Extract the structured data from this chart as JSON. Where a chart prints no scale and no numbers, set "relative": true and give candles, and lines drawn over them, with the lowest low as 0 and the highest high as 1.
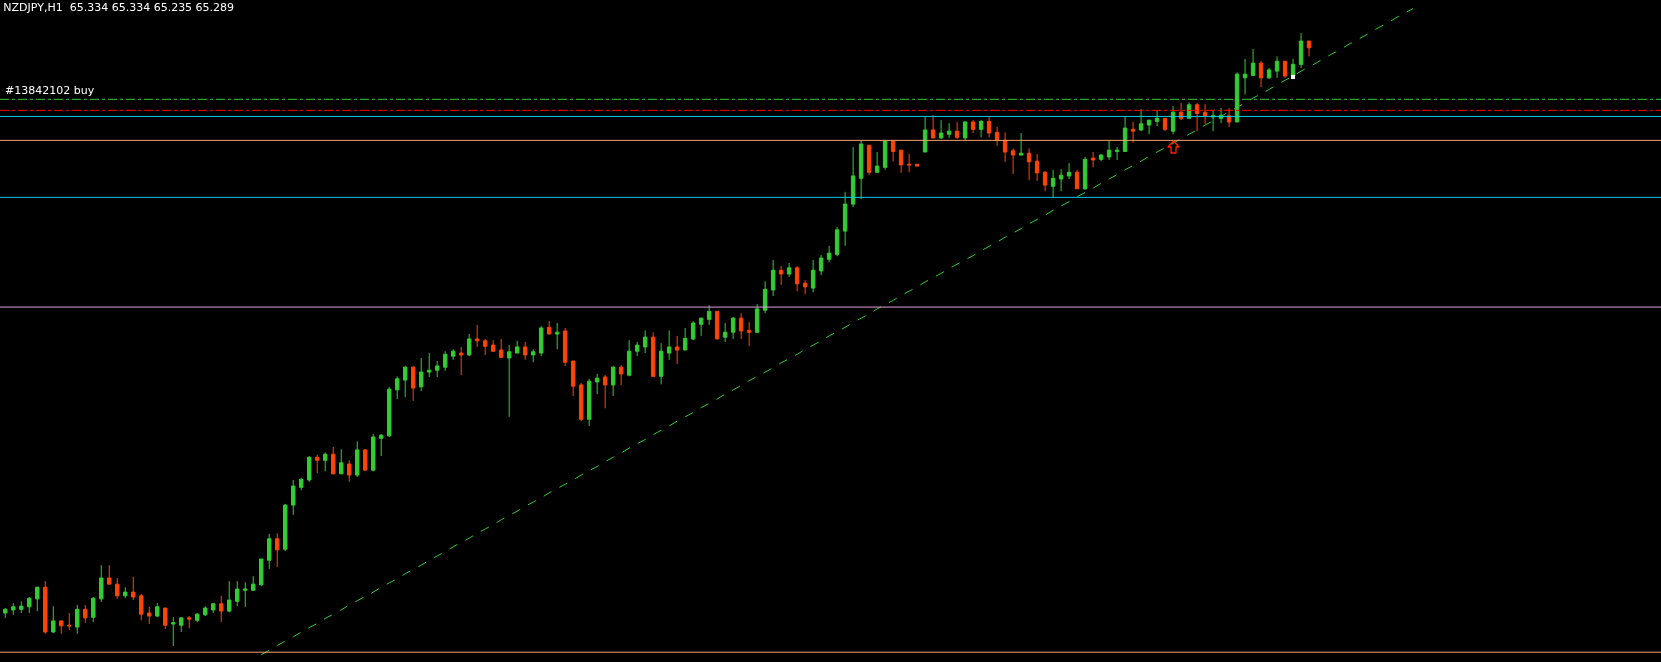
{
  "chart_data": {
    "type": "candlestick",
    "title": "NZDJPY,H1  65.334 65.334 65.235 65.289",
    "relative": true,
    "categories": [
      null,
      null,
      null,
      null,
      null,
      null,
      null,
      null,
      null,
      null,
      null,
      null,
      null,
      null,
      null,
      null,
      null,
      null,
      null,
      null,
      null,
      null,
      null,
      null,
      null,
      null,
      null,
      null,
      null,
      null,
      null,
      null,
      null,
      null,
      null,
      null,
      null,
      null,
      null,
      null,
      null,
      null,
      null,
      null,
      null,
      null,
      null,
      null,
      null,
      null,
      null,
      null,
      null,
      null,
      null,
      null,
      null,
      null,
      null,
      null,
      null,
      null,
      null,
      null,
      null,
      null,
      null,
      null,
      null,
      null,
      null,
      null,
      null,
      null,
      null,
      null,
      null,
      null,
      null,
      null,
      null,
      null,
      null,
      null,
      null,
      null,
      null,
      null,
      null,
      null,
      null,
      null,
      null,
      null,
      null,
      null,
      null,
      null,
      null,
      null,
      null,
      null,
      null,
      null,
      null,
      null,
      null,
      null,
      null,
      null,
      null,
      null,
      null,
      null,
      null,
      null,
      null,
      null,
      null,
      null,
      null,
      null,
      null,
      null,
      null,
      null,
      null,
      null,
      null,
      null,
      null,
      null,
      null,
      null,
      null,
      null,
      null,
      null,
      null,
      null,
      null,
      null,
      null,
      null,
      null,
      null,
      null,
      null,
      null,
      null,
      null,
      null,
      null,
      null,
      null,
      null,
      null,
      null,
      null,
      null,
      null,
      null,
      null,
      null,
      null,
      null,
      null,
      null,
      null,
      null,
      null,
      null,
      null,
      null,
      null,
      null,
      null
    ],
    "ohlc": [
      [
        0.054,
        0.062,
        0.046,
        0.06
      ],
      [
        0.059,
        0.07,
        0.051,
        0.064
      ],
      [
        0.06,
        0.073,
        0.054,
        0.065
      ],
      [
        0.064,
        0.08,
        0.054,
        0.078
      ],
      [
        0.077,
        0.096,
        0.057,
        0.096
      ],
      [
        0.096,
        0.106,
        0.02,
        0.023
      ],
      [
        0.023,
        0.065,
        0.021,
        0.041
      ],
      [
        0.041,
        0.041,
        0.02,
        0.033
      ],
      [
        0.034,
        0.054,
        0.026,
        0.033
      ],
      [
        0.031,
        0.067,
        0.02,
        0.06
      ],
      [
        0.06,
        0.067,
        0.038,
        0.046
      ],
      [
        0.047,
        0.08,
        0.039,
        0.078
      ],
      [
        0.077,
        0.132,
        0.072,
        0.111
      ],
      [
        0.111,
        0.132,
        0.101,
        0.101
      ],
      [
        0.101,
        0.111,
        0.077,
        0.082
      ],
      [
        0.082,
        0.096,
        0.078,
        0.088
      ],
      [
        0.088,
        0.113,
        0.075,
        0.08
      ],
      [
        0.082,
        0.085,
        0.042,
        0.052
      ],
      [
        0.054,
        0.064,
        0.036,
        0.049
      ],
      [
        0.049,
        0.07,
        0.047,
        0.064
      ],
      [
        0.062,
        0.062,
        0.028,
        0.034
      ],
      [
        0.036,
        0.047,
        0,
        0.038
      ],
      [
        0.034,
        0.047,
        0.023,
        0.046
      ],
      [
        0.046,
        0.049,
        0.029,
        0.044
      ],
      [
        0.042,
        0.054,
        0.039,
        0.052
      ],
      [
        0.051,
        0.065,
        0.049,
        0.062
      ],
      [
        0.059,
        0.07,
        0.054,
        0.069
      ],
      [
        0.069,
        0.082,
        0.039,
        0.057
      ],
      [
        0.057,
        0.106,
        0.055,
        0.075
      ],
      [
        0.073,
        0.106,
        0.065,
        0.093
      ],
      [
        0.091,
        0.104,
        0.064,
        0.093
      ],
      [
        0.091,
        0.114,
        0.091,
        0.101
      ],
      [
        0.1,
        0.142,
        0.098,
        0.142
      ],
      [
        0.14,
        0.183,
        0.126,
        0.175
      ],
      [
        0.175,
        0.184,
        0.129,
        0.157
      ],
      [
        0.158,
        0.232,
        0.155,
        0.23
      ],
      [
        0.23,
        0.271,
        0.214,
        0.261
      ],
      [
        0.259,
        0.274,
        0.254,
        0.272
      ],
      [
        0.271,
        0.31,
        0.268,
        0.308
      ],
      [
        0.308,
        0.312,
        0.282,
        0.303
      ],
      [
        0.303,
        0.316,
        0.285,
        0.313
      ],
      [
        0.313,
        0.325,
        0.281,
        0.281
      ],
      [
        0.281,
        0.321,
        0.281,
        0.299
      ],
      [
        0.297,
        0.303,
        0.268,
        0.279
      ],
      [
        0.279,
        0.334,
        0.276,
        0.32
      ],
      [
        0.32,
        0.321,
        0.287,
        0.287
      ],
      [
        0.287,
        0.346,
        0.285,
        0.341
      ],
      [
        0.339,
        0.346,
        0.31,
        0.344
      ],
      [
        0.343,
        0.423,
        0.341,
        0.419
      ],
      [
        0.418,
        0.44,
        0.403,
        0.436
      ],
      [
        0.434,
        0.457,
        0.406,
        0.455
      ],
      [
        0.455,
        0.457,
        0.4,
        0.421
      ],
      [
        0.423,
        0.47,
        0.416,
        0.447
      ],
      [
        0.447,
        0.478,
        0.439,
        0.45
      ],
      [
        0.45,
        0.465,
        0.439,
        0.457
      ],
      [
        0.455,
        0.481,
        0.449,
        0.476
      ],
      [
        0.473,
        0.484,
        0.467,
        0.481
      ],
      [
        0.478,
        0.488,
        0.442,
        0.475
      ],
      [
        0.475,
        0.509,
        0.473,
        0.501
      ],
      [
        0.501,
        0.524,
        0.488,
        0.498
      ],
      [
        0.498,
        0.501,
        0.475,
        0.489
      ],
      [
        0.491,
        0.499,
        0.48,
        0.481
      ],
      [
        0.483,
        0.501,
        0.471,
        0.471
      ],
      [
        0.47,
        0.491,
        0.374,
        0.48
      ],
      [
        0.478,
        0.498,
        0.478,
        0.488
      ],
      [
        0.488,
        0.496,
        0.467,
        0.475
      ],
      [
        0.475,
        0.484,
        0.463,
        0.48
      ],
      [
        0.478,
        0.522,
        0.473,
        0.519
      ],
      [
        0.52,
        0.53,
        0.509,
        0.509
      ],
      [
        0.509,
        0.527,
        0.484,
        0.512
      ],
      [
        0.514,
        0.519,
        0.457,
        0.463
      ],
      [
        0.465,
        0.465,
        0.408,
        0.424
      ],
      [
        0.426,
        0.429,
        0.367,
        0.37
      ],
      [
        0.37,
        0.436,
        0.359,
        0.432
      ],
      [
        0.431,
        0.444,
        0.411,
        0.437
      ],
      [
        0.439,
        0.442,
        0.388,
        0.426
      ],
      [
        0.426,
        0.457,
        0.408,
        0.455
      ],
      [
        0.455,
        0.458,
        0.426,
        0.444
      ],
      [
        0.442,
        0.499,
        0.44,
        0.481
      ],
      [
        0.481,
        0.496,
        0.473,
        0.491
      ],
      [
        0.488,
        0.515,
        0.478,
        0.504
      ],
      [
        0.504,
        0.512,
        0.44,
        0.44
      ],
      [
        0.44,
        0.494,
        0.427,
        0.481
      ],
      [
        0.478,
        0.515,
        0.467,
        0.488
      ],
      [
        0.488,
        0.506,
        0.46,
        0.483
      ],
      [
        0.483,
        0.519,
        0.483,
        0.502
      ],
      [
        0.501,
        0.53,
        0.499,
        0.527
      ],
      [
        0.525,
        0.535,
        0.506,
        0.535
      ],
      [
        0.533,
        0.556,
        0.524,
        0.546
      ],
      [
        0.546,
        0.546,
        0.501,
        0.501
      ],
      [
        0.504,
        0.527,
        0.496,
        0.512
      ],
      [
        0.512,
        0.537,
        0.501,
        0.535
      ],
      [
        0.535,
        0.543,
        0.501,
        0.514
      ],
      [
        0.515,
        0.529,
        0.489,
        0.512
      ],
      [
        0.512,
        0.558,
        0.512,
        0.55
      ],
      [
        0.548,
        0.595,
        0.543,
        0.582
      ],
      [
        0.581,
        0.63,
        0.571,
        0.613
      ],
      [
        0.613,
        0.62,
        0.589,
        0.607
      ],
      [
        0.607,
        0.625,
        0.602,
        0.617
      ],
      [
        0.617,
        0.62,
        0.579,
        0.591
      ],
      [
        0.592,
        0.597,
        0.574,
        0.586
      ],
      [
        0.584,
        0.63,
        0.577,
        0.613
      ],
      [
        0.612,
        0.638,
        0.605,
        0.633
      ],
      [
        0.631,
        0.653,
        0.626,
        0.641
      ],
      [
        0.639,
        0.684,
        0.636,
        0.679
      ],
      [
        0.677,
        0.741,
        0.653,
        0.721
      ],
      [
        0.721,
        0.814,
        0.716,
        0.767
      ],
      [
        0.763,
        0.824,
        0.729,
        0.819
      ],
      [
        0.817,
        0.817,
        0.768,
        0.773
      ],
      [
        0.773,
        0.806,
        0.773,
        0.783
      ],
      [
        0.781,
        0.824,
        0.777,
        0.824
      ],
      [
        0.824,
        0.824,
        0.791,
        0.807
      ],
      [
        0.809,
        0.809,
        0.772,
        0.785
      ],
      [
        0.786,
        0.803,
        0.773,
        0.785
      ],
      [
        0.786,
        0.786,
        0.783,
        0.783
      ],
      [
        0.806,
        0.863,
        0.806,
        0.842
      ],
      [
        0.842,
        0.866,
        0.829,
        0.829
      ],
      [
        0.829,
        0.858,
        0.827,
        0.837
      ],
      [
        0.835,
        0.853,
        0.829,
        0.84
      ],
      [
        0.84,
        0.855,
        0.827,
        0.83
      ],
      [
        0.829,
        0.856,
        0.825,
        0.855
      ],
      [
        0.855,
        0.858,
        0.837,
        0.843
      ],
      [
        0.843,
        0.858,
        0.83,
        0.856
      ],
      [
        0.856,
        0.863,
        0.83,
        0.837
      ],
      [
        0.838,
        0.847,
        0.816,
        0.825
      ],
      [
        0.825,
        0.838,
        0.79,
        0.806
      ],
      [
        0.808,
        0.812,
        0.77,
        0.801
      ],
      [
        0.801,
        0.837,
        0.801,
        0.804
      ],
      [
        0.804,
        0.812,
        0.76,
        0.79
      ],
      [
        0.791,
        0.803,
        0.759,
        0.772
      ],
      [
        0.773,
        0.775,
        0.742,
        0.752
      ],
      [
        0.75,
        0.777,
        0.732,
        0.763
      ],
      [
        0.762,
        0.778,
        0.742,
        0.768
      ],
      [
        0.767,
        0.788,
        0.762,
        0.773
      ],
      [
        0.773,
        0.777,
        0.746,
        0.746
      ],
      [
        0.746,
        0.798,
        0.744,
        0.794
      ],
      [
        0.796,
        0.806,
        0.781,
        0.793
      ],
      [
        0.794,
        0.803,
        0.791,
        0.801
      ],
      [
        0.798,
        0.825,
        0.793,
        0.809
      ],
      [
        0.807,
        0.814,
        0.793,
        0.809
      ],
      [
        0.807,
        0.863,
        0.807,
        0.845
      ],
      [
        0.843,
        0.855,
        0.821,
        0.84
      ],
      [
        0.842,
        0.876,
        0.84,
        0.852
      ],
      [
        0.85,
        0.858,
        0.835,
        0.858
      ],
      [
        0.856,
        0.873,
        0.848,
        0.861
      ],
      [
        0.861,
        0.861,
        0.84,
        0.843
      ],
      [
        0.84,
        0.881,
        0.835,
        0.871
      ],
      [
        0.871,
        0.886,
        0.858,
        0.861
      ],
      [
        0.861,
        0.887,
        0.86,
        0.883
      ],
      [
        0.883,
        0.886,
        0.84,
        0.869
      ],
      [
        0.871,
        0.884,
        0.852,
        0.865
      ],
      [
        0.863,
        0.874,
        0.84,
        0.865
      ],
      [
        0.861,
        0.878,
        0.853,
        0.866
      ],
      [
        0.865,
        0.878,
        0.847,
        0.855
      ],
      [
        0.855,
        0.936,
        0.855,
        0.933
      ],
      [
        0.927,
        0.958,
        0.9,
        0.933
      ],
      [
        0.931,
        0.974,
        0.93,
        0.951
      ],
      [
        0.951,
        0.954,
        0.912,
        0.927
      ],
      [
        0.927,
        0.943,
        0.925,
        0.94
      ],
      [
        0.938,
        0.962,
        0.927,
        0.954
      ],
      [
        0.954,
        0.954,
        0.927,
        0.93
      ],
      [
        0.93,
        0.958,
        0.93,
        0.949
      ],
      [
        0.949,
        1,
        0.943,
        0.987
      ],
      [
        0.987,
        0.987,
        0.962,
        0.976
      ],
      null,
      null,
      null,
      null,
      null,
      null,
      null,
      null,
      null,
      null,
      null,
      null,
      null
    ],
    "colors": [
      "#32cd32",
      "#32cd32",
      "#32cd32",
      "#32cd32",
      "#32cd32",
      "#ff4500",
      "#32cd32",
      "#ff4500",
      "#ff4500",
      "#32cd32",
      "#ff4500",
      "#32cd32",
      "#32cd32",
      "#ff4500",
      "#ff4500",
      "#32cd32",
      "#ff4500",
      "#ff4500",
      "#ff4500",
      "#32cd32",
      "#ff4500",
      "#32cd32",
      "#32cd32",
      "#ff4500",
      "#32cd32",
      "#32cd32",
      "#32cd32",
      "#ff4500",
      "#32cd32",
      "#32cd32",
      "#32cd32",
      "#32cd32",
      "#32cd32",
      "#32cd32",
      "#ff4500",
      "#32cd32",
      "#32cd32",
      "#32cd32",
      "#32cd32",
      "#ff4500",
      "#32cd32",
      "#ff4500",
      "#32cd32",
      "#ff4500",
      "#32cd32",
      "#ff4500",
      "#32cd32",
      "#32cd32",
      "#32cd32",
      "#32cd32",
      "#32cd32",
      "#ff4500",
      "#32cd32",
      "#32cd32",
      "#32cd32",
      "#32cd32",
      "#32cd32",
      "#ff4500",
      "#32cd32",
      "#ff4500",
      "#ff4500",
      "#ff4500",
      "#ff4500",
      "#32cd32",
      "#32cd32",
      "#ff4500",
      "#32cd32",
      "#32cd32",
      "#ff4500",
      "#32cd32",
      "#ff4500",
      "#ff4500",
      "#ff4500",
      "#32cd32",
      "#32cd32",
      "#ff4500",
      "#32cd32",
      "#ff4500",
      "#32cd32",
      "#32cd32",
      "#32cd32",
      "#ff4500",
      "#32cd32",
      "#32cd32",
      "#ff4500",
      "#32cd32",
      "#32cd32",
      "#32cd32",
      "#32cd32",
      "#ff4500",
      "#32cd32",
      "#32cd32",
      "#ff4500",
      "#ff4500",
      "#32cd32",
      "#32cd32",
      "#32cd32",
      "#ff4500",
      "#32cd32",
      "#ff4500",
      "#ff4500",
      "#32cd32",
      "#32cd32",
      "#32cd32",
      "#32cd32",
      "#32cd32",
      "#32cd32",
      "#32cd32",
      "#ff4500",
      "#32cd32",
      "#32cd32",
      "#ff4500",
      "#ff4500",
      "#ff4500",
      "#ff4500",
      "#32cd32",
      "#ff4500",
      "#32cd32",
      "#32cd32",
      "#ff4500",
      "#32cd32",
      "#ff4500",
      "#32cd32",
      "#ff4500",
      "#ff4500",
      "#ff4500",
      "#ff4500",
      "#32cd32",
      "#ff4500",
      "#ff4500",
      "#ff4500",
      "#32cd32",
      "#32cd32",
      "#32cd32",
      "#ff4500",
      "#32cd32",
      "#ff4500",
      "#32cd32",
      "#32cd32",
      "#32cd32",
      "#32cd32",
      "#ff4500",
      "#32cd32",
      "#32cd32",
      "#32cd32",
      "#ff4500",
      "#32cd32",
      "#ff4500",
      "#32cd32",
      "#ff4500",
      "#ff4500",
      "#32cd32",
      "#32cd32",
      "#ff4500",
      "#32cd32",
      "#32cd32",
      "#32cd32",
      "#ff4500",
      "#32cd32",
      "#32cd32",
      "#ff4500",
      "#32cd32",
      "#32cd32",
      "#ff4500",
      null,
      null,
      null,
      null,
      null,
      null,
      null,
      null,
      null,
      null,
      null,
      null,
      null
    ],
    "series": [
      {
        "type": "line",
        "color": "#32cd32",
        "line_style": "dashed",
        "values": [
          null,
          null,
          null,
          null,
          null,
          null,
          null,
          null,
          null,
          null,
          null,
          null,
          null,
          null,
          null,
          null,
          null,
          null,
          null,
          null,
          null,
          null,
          null,
          null,
          null,
          null,
          null,
          null,
          null,
          null,
          null,
          null,
          -0.014,
          -0.007,
          0.001,
          0.008,
          0.015,
          0.023,
          0.03,
          0.037,
          0.045,
          0.052,
          0.059,
          0.067,
          0.074,
          0.081,
          0.088,
          0.096,
          0.103,
          0.11,
          0.118,
          0.125,
          0.132,
          0.14,
          0.147,
          0.154,
          0.162,
          0.169,
          0.176,
          0.184,
          0.191,
          0.198,
          0.206,
          0.213,
          0.22,
          0.228,
          0.235,
          0.242,
          0.25,
          0.257,
          0.264,
          0.271,
          0.279,
          0.286,
          0.293,
          0.301,
          0.308,
          0.315,
          0.323,
          0.33,
          0.337,
          0.345,
          0.352,
          0.359,
          0.367,
          0.374,
          0.381,
          0.389,
          0.396,
          0.403,
          0.411,
          0.418,
          0.425,
          0.433,
          0.44,
          0.447,
          0.454,
          0.462,
          0.469,
          0.476,
          0.484,
          0.491,
          0.498,
          0.506,
          0.513,
          0.52,
          0.528,
          0.535,
          0.542,
          0.55,
          0.557,
          0.564,
          0.572,
          0.579,
          0.586,
          0.594,
          0.601,
          0.608,
          0.616,
          0.623,
          0.63,
          0.637,
          0.645,
          0.652,
          0.659,
          0.667,
          0.674,
          0.681,
          0.689,
          0.696,
          0.703,
          0.711,
          0.718,
          0.725,
          0.733,
          0.74,
          0.747,
          0.755,
          0.762,
          0.769,
          0.777,
          0.784,
          0.791,
          0.799,
          0.806,
          0.813,
          0.82,
          0.828,
          0.835,
          0.842,
          0.85,
          0.857,
          0.864,
          0.872,
          0.879,
          0.886,
          0.894,
          0.901,
          0.908,
          0.916,
          0.923,
          0.93,
          0.938,
          0.945,
          0.952,
          0.96,
          0.967,
          0.974,
          0.982,
          0.989,
          0.996,
          1.004,
          1.011,
          1.018,
          1.026,
          1.033,
          1.04
        ]
      }
    ],
    "ref_lines": [
      {
        "axis": "y",
        "value": 0.892,
        "label": "#13842102 buy",
        "color": "#32cd32",
        "line_style": "dashdot"
      },
      {
        "axis": "y",
        "value": 0.874,
        "color": "#ff0000",
        "line_style": "dashdot"
      },
      {
        "axis": "y",
        "value": 0.864,
        "color": "#00c8e6",
        "line_style": "solid"
      },
      {
        "axis": "y",
        "value": 0.825,
        "color": "#f4a070",
        "line_style": "solid"
      },
      {
        "axis": "y",
        "value": 0.732,
        "color": "#00c8e6",
        "line_style": "solid"
      },
      {
        "axis": "y",
        "value": 0.553,
        "color": "#dda0dd",
        "line_style": "solid"
      },
      {
        "axis": "y",
        "value": -0.01,
        "color": "#f4a070",
        "line_style": "solid"
      }
    ],
    "grid": false,
    "legend": false
  }
}
